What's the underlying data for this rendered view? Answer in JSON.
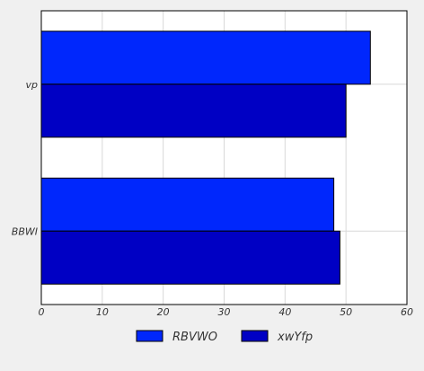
{
  "chart_data": {
    "type": "bar",
    "orientation": "horizontal",
    "categories": [
      "vp",
      "BBWI"
    ],
    "series": [
      {
        "name": "RBVWO",
        "values": [
          54,
          48
        ],
        "color": "#0027fc"
      },
      {
        "name": "xwYfp",
        "values": [
          50,
          49
        ],
        "color": "#0000c4"
      }
    ],
    "x_ticks": [
      "0",
      "10",
      "20",
      "30",
      "40",
      "50",
      "60"
    ],
    "xlim": [
      0,
      60
    ],
    "grid": true,
    "legend_placement": "bottom-center",
    "title": "",
    "xlabel": "",
    "ylabel": ""
  }
}
